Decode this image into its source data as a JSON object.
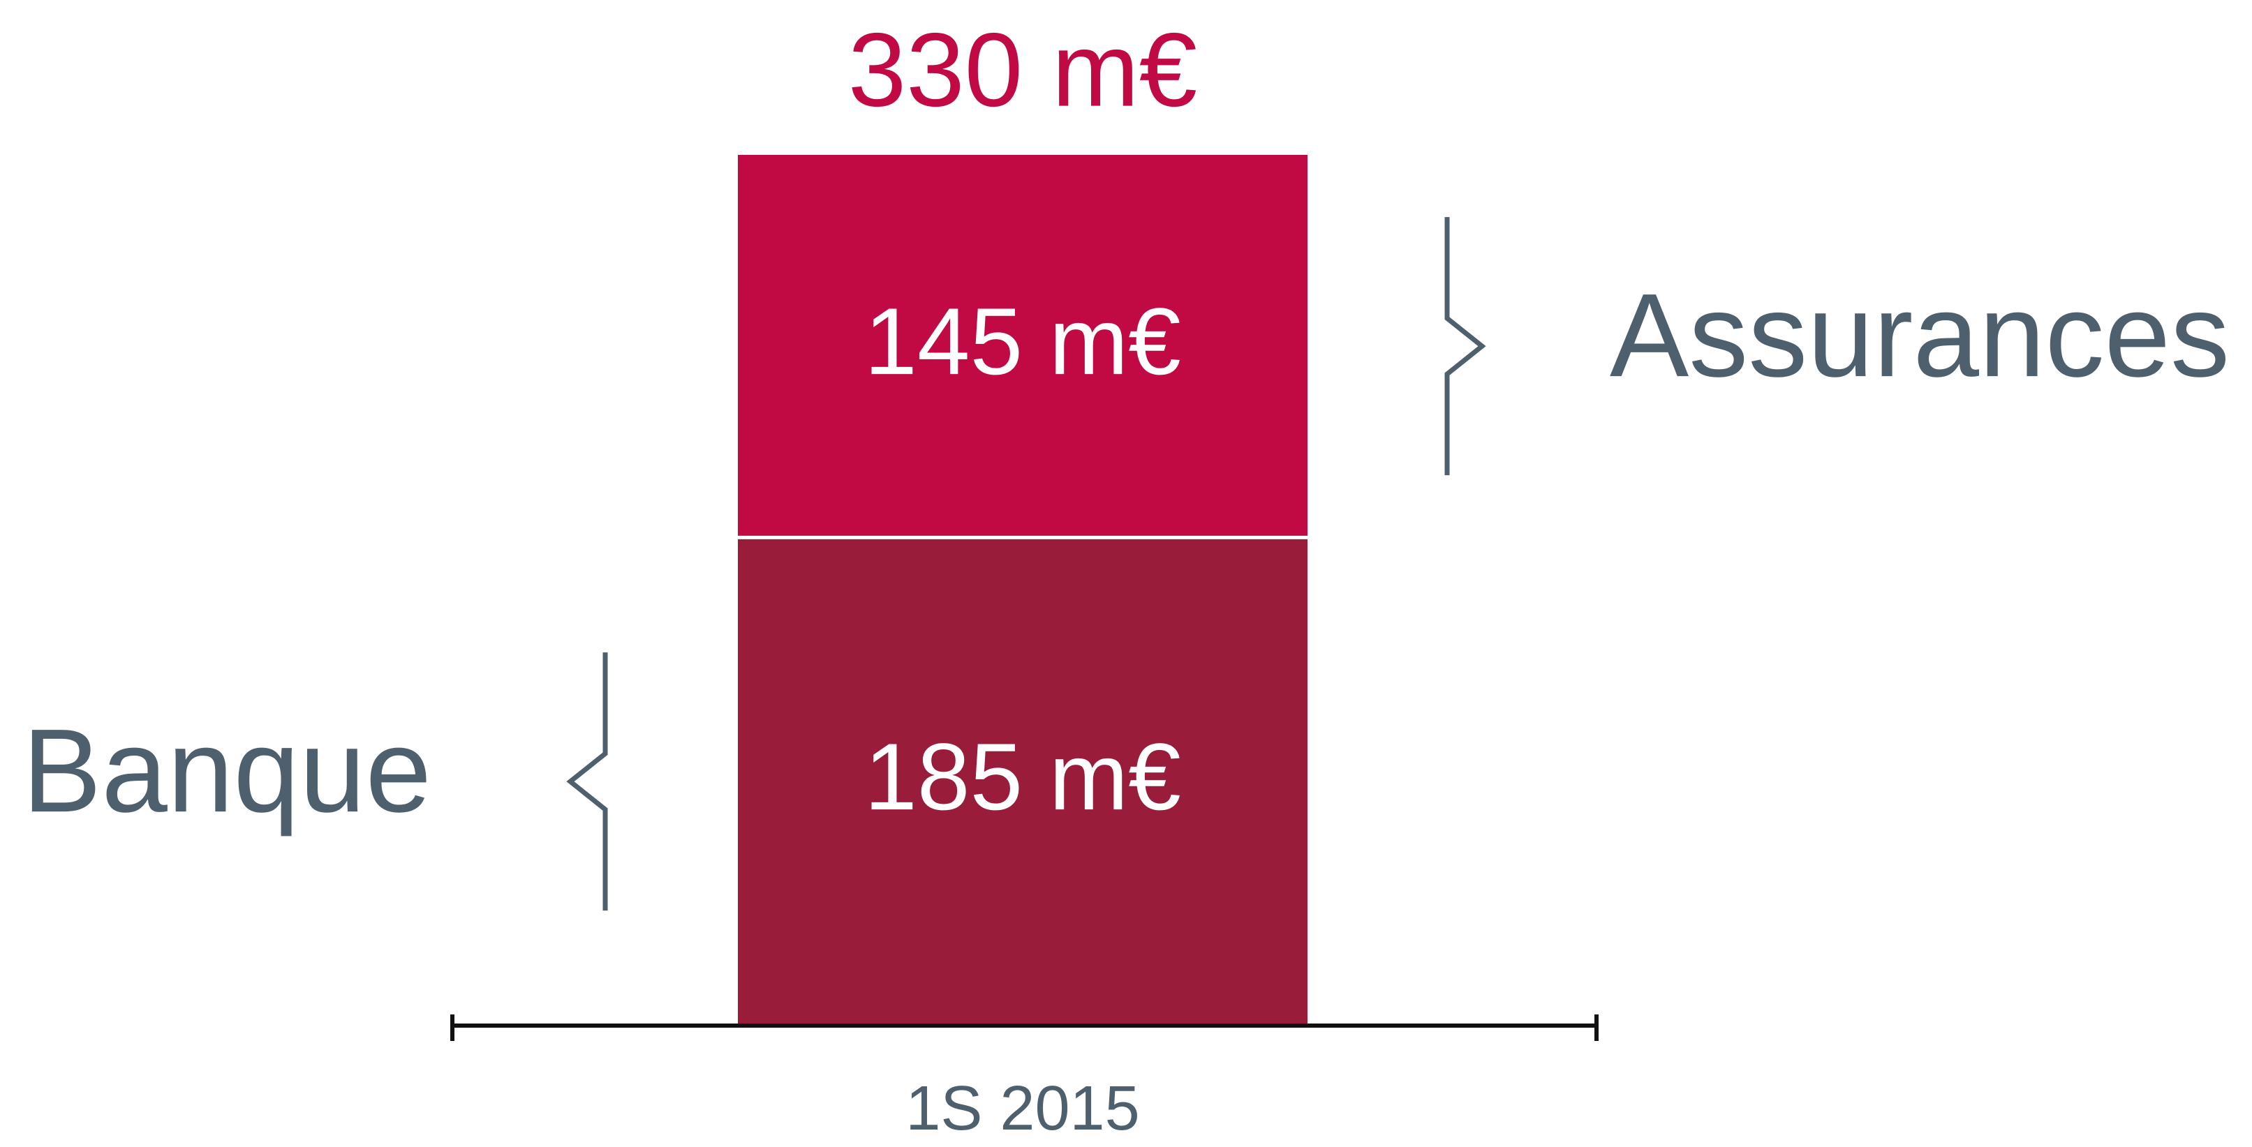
{
  "chart_data": {
    "type": "bar",
    "stacked": true,
    "categories": [
      "1S 2015"
    ],
    "series": [
      {
        "name": "Banque",
        "values": [
          185
        ],
        "color": "#9a1c3b",
        "value_label": "185 m€"
      },
      {
        "name": "Assurances",
        "values": [
          145
        ],
        "color": "#c10a44",
        "value_label": "145 m€"
      }
    ],
    "total": 330,
    "total_label": "330 m€",
    "total_color": "#c10a44",
    "text_color": "#4e5f6d",
    "ylim": [
      0,
      330
    ],
    "grid": false,
    "legend": "brace-labels-beside-segments",
    "title": "",
    "xlabel": "",
    "ylabel": ""
  }
}
